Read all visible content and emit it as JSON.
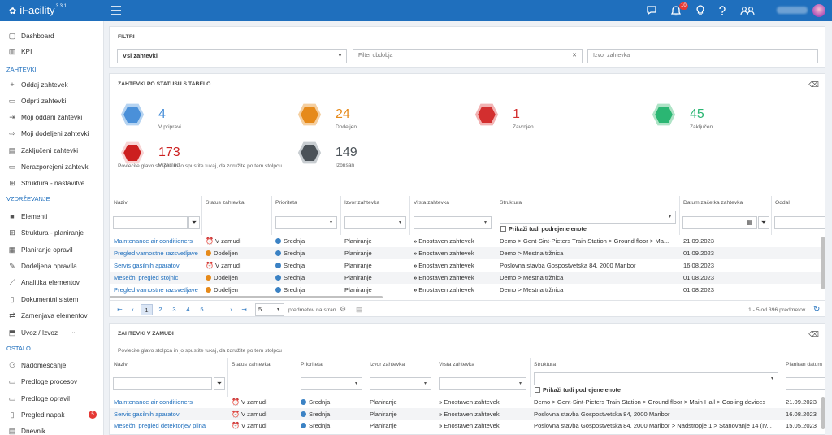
{
  "app": {
    "name": "iFacility",
    "version": "3.3.1",
    "notif_count": "10"
  },
  "sidebar": {
    "items": [
      {
        "label": "Dashboard",
        "icon": "dashboard-icon"
      },
      {
        "label": "KPI",
        "icon": "kpi-chart-icon"
      },
      {
        "label": "Oddaj zahtevek",
        "icon": "plus-icon"
      },
      {
        "label": "Odprti zahtevki",
        "icon": "inbox-icon"
      },
      {
        "label": "Moji oddani zahtevki",
        "icon": "send-icon"
      },
      {
        "label": "Moji dodeljeni zahtevki",
        "icon": "login-icon"
      },
      {
        "label": "Zaključeni zahtevki",
        "icon": "clipboard-icon"
      },
      {
        "label": "Nerazporejeni zahtevki",
        "icon": "tray-icon"
      },
      {
        "label": "Struktura - nastavitve",
        "icon": "structure-icon"
      },
      {
        "label": "Elementi",
        "icon": "element-icon"
      },
      {
        "label": "Struktura - planiranje",
        "icon": "structure-plan-icon"
      },
      {
        "label": "Planiranje opravil",
        "icon": "calendar-icon"
      },
      {
        "label": "Dodeljena opravila",
        "icon": "wrench-icon"
      },
      {
        "label": "Analitika elementov",
        "icon": "analytics-icon"
      },
      {
        "label": "Dokumentni sistem",
        "icon": "document-icon"
      },
      {
        "label": "Zamenjava elementov",
        "icon": "swap-icon"
      },
      {
        "label": "Uvoz / Izvoz",
        "icon": "import-export-icon"
      },
      {
        "label": "Nadomeščanje",
        "icon": "replacement-icon"
      },
      {
        "label": "Predloge procesov",
        "icon": "template-icon"
      },
      {
        "label": "Predloge opravil",
        "icon": "template-task-icon"
      },
      {
        "label": "Pregled napak",
        "icon": "error-review-icon",
        "badge": "5"
      },
      {
        "label": "Dnevnik",
        "icon": "log-icon"
      }
    ],
    "sections": {
      "zahtevki": "ZAHTEVKI",
      "vzdrzevanje": "VZDRŽEVANJE",
      "ostalo": "OSTALO"
    }
  },
  "filters": {
    "title": "FILTRI",
    "select_value": "Vsi zahtevki",
    "period_placeholder": "Filter obdobja",
    "source_placeholder": "Izvor zahtevka"
  },
  "status_panel": {
    "title": "ZAHTEVKI PO STATUSU S TABELO",
    "kpis": [
      {
        "value": "4",
        "label": "V pripravi",
        "color": "#4a90d9",
        "halo": "#b5d3f1"
      },
      {
        "value": "24",
        "label": "Dodeljen",
        "color": "#e68a1a",
        "halo": "#f5cfa0"
      },
      {
        "value": "1",
        "label": "Zavrnjen",
        "color": "#d32f2f",
        "halo": "#f2b3b3"
      },
      {
        "value": "45",
        "label": "Zaključen",
        "color": "#2bb673",
        "halo": "#aee3c6"
      },
      {
        "value": "173",
        "label": "V zamudi",
        "color": "#cc1f1f",
        "halo": "#f8d4d4"
      },
      {
        "value": "149",
        "label": "Izbrisan",
        "color": "#4b5258",
        "halo": "#c8cdd1"
      }
    ],
    "hint": "Povlecite glavo stolpca in jo spustite tukaj, da združite po tem stolpcu",
    "columns": [
      "Naziv",
      "Status zahtevka",
      "Prioriteta",
      "Izvor zahtevka",
      "Vrsta zahtevka",
      "Struktura",
      "Datum začetka zahtevka",
      "Oddal"
    ],
    "subunits_label": "Prikaži tudi podrejene enote",
    "rows": [
      {
        "naziv": "Maintenance air conditioners",
        "status": "V zamudi",
        "prioriteta": "Srednja",
        "izvor": "Planiranje",
        "vrsta": "Enostaven zahtevek",
        "struktura": "Demo > Gent-Sint-Pieters Train Station > Ground floor > Ma...",
        "datum": "21.09.2023"
      },
      {
        "naziv": "Pregled varnostne razsvetljave",
        "status": "Dodeljen",
        "prioriteta": "Srednja",
        "izvor": "Planiranje",
        "vrsta": "Enostaven zahtevek",
        "struktura": "Demo > Mestna tržnica",
        "datum": "01.09.2023"
      },
      {
        "naziv": "Servis gasilnih aparatov",
        "status": "V zamudi",
        "prioriteta": "Srednja",
        "izvor": "Planiranje",
        "vrsta": "Enostaven zahtevek",
        "struktura": "Poslovna stavba Gospostvetska 84, 2000 Maribor",
        "datum": "16.08.2023"
      },
      {
        "naziv": "Mesečni pregled stojnic",
        "status": "Dodeljen",
        "prioriteta": "Srednja",
        "izvor": "Planiranje",
        "vrsta": "Enostaven zahtevek",
        "struktura": "Demo > Mestna tržnica",
        "datum": "01.08.2023"
      },
      {
        "naziv": "Pregled varnostne razsvetljave",
        "status": "Dodeljen",
        "prioriteta": "Srednja",
        "izvor": "Planiranje",
        "vrsta": "Enostaven zahtevek",
        "struktura": "Demo > Mestna tržnica",
        "datum": "01.08.2023"
      }
    ],
    "pager": {
      "pages": [
        "1",
        "2",
        "3",
        "4",
        "5",
        "..."
      ],
      "page_size": "5",
      "per_page_label": "predmetov na stran",
      "info": "1 - 5 od 396 predmetov"
    }
  },
  "overdue_panel": {
    "title": "ZAHTEVKI V ZAMUDI",
    "hint": "Povlecite glavo stolpca in jo spustite tukaj, da združite po tem stolpcu",
    "columns": [
      "Naziv",
      "Status zahtevka",
      "Prioriteta",
      "Izvor zahtevka",
      "Vrsta zahtevka",
      "Struktura",
      "Planiran datum"
    ],
    "subunits_label": "Prikaži tudi podrejene enote",
    "rows": [
      {
        "naziv": "Maintenance air conditioners",
        "status": "V zamudi",
        "prioriteta": "Srednja",
        "izvor": "Planiranje",
        "vrsta": "Enostaven zahtevek",
        "struktura": "Demo > Gent-Sint-Pieters Train Station > Ground floor > Main Hall > Cooling devices",
        "datum": "21.09.2023"
      },
      {
        "naziv": "Servis gasilnih aparatov",
        "status": "V zamudi",
        "prioriteta": "Srednja",
        "izvor": "Planiranje",
        "vrsta": "Enostaven zahtevek",
        "struktura": "Poslovna stavba Gospostvetska 84, 2000 Maribor",
        "datum": "16.08.2023"
      },
      {
        "naziv": "Mesečni pregled detektorjev plina",
        "status": "V zamudi",
        "prioriteta": "Srednja",
        "izvor": "Planiranje",
        "vrsta": "Enostaven zahtevek",
        "struktura": "Poslovna stavba Gospostvetska 84, 2000 Maribor > Nadstropje 1 > Stanovanje 14 (Iv...",
        "datum": "15.05.2023"
      }
    ]
  },
  "colors": {
    "brand": "#1f6fbd",
    "medium_priority": "#3b82c4",
    "assigned": "#e68a1a",
    "overdue": "#d32f2f"
  }
}
